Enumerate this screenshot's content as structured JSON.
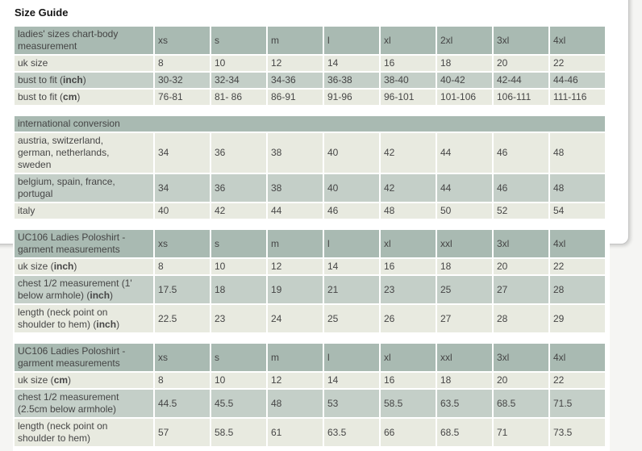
{
  "page_title": "Size Guide",
  "colors": {
    "page_bg": "#f5f5f3",
    "panel_bg": "#ffffff",
    "panel_border": "#c4c4c4",
    "header_bg": "#a9bab2",
    "row_light": "#e8eae0",
    "row_medium": "#c4cfc8",
    "text": "#464646"
  },
  "tables": [
    {
      "name": "ladies-sizes-body-measurement",
      "header": {
        "label": [
          {
            "t": "ladies' sizes chart-body measurement"
          }
        ],
        "columns": [
          "xs",
          "s",
          "m",
          "l",
          "xl",
          "2xl",
          "3xl",
          "4xl"
        ]
      },
      "rows": [
        {
          "shade": "light",
          "label": [
            {
              "t": "uk size"
            }
          ],
          "values": [
            "8",
            "10",
            "12",
            "14",
            "16",
            "18",
            "20",
            "22"
          ]
        },
        {
          "shade": "medium",
          "label": [
            {
              "t": "bust to fit ("
            },
            {
              "t": "inch",
              "b": true
            },
            {
              "t": ")"
            }
          ],
          "values": [
            "30-32",
            "32-34",
            "34-36",
            "36-38",
            "38-40",
            "40-42",
            "42-44",
            "44-46"
          ]
        },
        {
          "shade": "light",
          "label": [
            {
              "t": "bust to fit ("
            },
            {
              "t": "cm",
              "b": true
            },
            {
              "t": ")"
            }
          ],
          "values": [
            "76-81",
            "81- 86",
            "86-91",
            "91-96",
            "96-101",
            "101-106",
            "106-111",
            "111-116"
          ]
        }
      ]
    },
    {
      "name": "international-conversion",
      "header": {
        "label": [
          {
            "t": "international conversion"
          }
        ],
        "columns": null
      },
      "rows": [
        {
          "shade": "light",
          "label": [
            {
              "t": "austria, switzerland, german, netherlands, sweden"
            }
          ],
          "values": [
            "34",
            "36",
            "38",
            "40",
            "42",
            "44",
            "46",
            "48"
          ]
        },
        {
          "shade": "medium",
          "label": [
            {
              "t": "belgium, spain, france, portugal"
            }
          ],
          "values": [
            "34",
            "36",
            "38",
            "40",
            "42",
            "44",
            "46",
            "48"
          ]
        },
        {
          "shade": "light",
          "label": [
            {
              "t": "italy"
            }
          ],
          "values": [
            "40",
            "42",
            "44",
            "46",
            "48",
            "50",
            "52",
            "54"
          ]
        }
      ]
    },
    {
      "name": "uc106-garment-measurements-inch",
      "header": {
        "label": [
          {
            "t": "UC106 Ladies Poloshirt - garment measurements"
          }
        ],
        "columns": [
          "xs",
          "s",
          "m",
          "l",
          "xl",
          "xxl",
          "3xl",
          "4xl"
        ]
      },
      "rows": [
        {
          "shade": "light",
          "label": [
            {
              "t": "uk size ("
            },
            {
              "t": "inch",
              "b": true
            },
            {
              "t": ")"
            }
          ],
          "values": [
            "8",
            "10",
            "12",
            "14",
            "16",
            "18",
            "20",
            "22"
          ]
        },
        {
          "shade": "medium",
          "label": [
            {
              "t": "chest 1/2 measurement (1' below armhole) ("
            },
            {
              "t": "inch",
              "b": true
            },
            {
              "t": ")"
            }
          ],
          "values": [
            "17.5",
            "18",
            "19",
            "21",
            "23",
            "25",
            "27",
            "28"
          ]
        },
        {
          "shade": "light",
          "label": [
            {
              "t": "length (neck point on shoulder to hem) ("
            },
            {
              "t": "inch",
              "b": true
            },
            {
              "t": ")"
            }
          ],
          "values": [
            "22.5",
            "23",
            "24",
            "25",
            "26",
            "27",
            "28",
            "29"
          ]
        }
      ]
    },
    {
      "name": "uc106-garment-measurements-cm",
      "header": {
        "label": [
          {
            "t": "UC106 Ladies Poloshirt - garment measurements"
          }
        ],
        "columns": [
          "xs",
          "s",
          "m",
          "l",
          "xl",
          "xxl",
          "3xl",
          "4xl"
        ]
      },
      "rows": [
        {
          "shade": "light",
          "label": [
            {
              "t": "uk size ("
            },
            {
              "t": "cm",
              "b": true
            },
            {
              "t": ")"
            }
          ],
          "values": [
            "8",
            "10",
            "12",
            "14",
            "16",
            "18",
            "20",
            "22"
          ]
        },
        {
          "shade": "medium",
          "label": [
            {
              "t": "chest 1/2 measurement (2.5cm below armhole)"
            }
          ],
          "values": [
            "44.5",
            "45.5",
            "48",
            "53",
            "58.5",
            "63.5",
            "68.5",
            "71.5"
          ]
        },
        {
          "shade": "light",
          "label": [
            {
              "t": "length (neck point on shoulder to hem)"
            }
          ],
          "values": [
            "57",
            "58.5",
            "61",
            "63.5",
            "66",
            "68.5",
            "71",
            "73.5"
          ]
        }
      ]
    }
  ]
}
